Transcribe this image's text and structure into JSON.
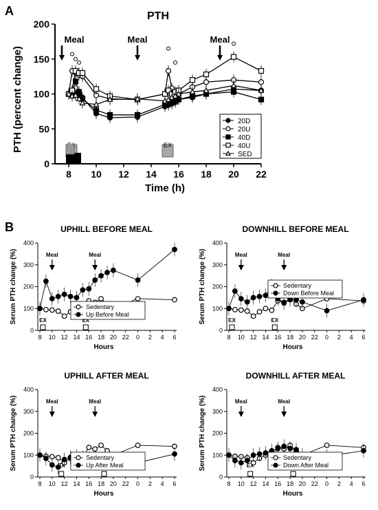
{
  "figure": {
    "panel_a_label": "A",
    "panel_b_label": "B"
  },
  "chart_data": [
    {
      "id": "A",
      "type": "line",
      "title": "PTH",
      "xlabel": "Time (h)",
      "ylabel": "PTH (percent change)",
      "xlim": [
        7,
        22
      ],
      "ylim": [
        0,
        200
      ],
      "xticks": [
        "8",
        "10",
        "12",
        "14",
        "16",
        "18",
        "20",
        "22"
      ],
      "yticks": [
        "0",
        "50",
        "100",
        "150",
        "200"
      ],
      "meals": [
        {
          "label": "Meal",
          "x": 7.5
        },
        {
          "label": "Meal",
          "x": 13
        },
        {
          "label": "Meal",
          "x": 19
        }
      ],
      "ex_markers": [
        {
          "label": "EX",
          "x": 8.2
        },
        {
          "label": "EX",
          "x": 15.2
        }
      ],
      "series": [
        {
          "name": "20D",
          "marker": "circle-filled",
          "x": [
            8,
            8.25,
            8.5,
            8.75,
            9,
            10,
            11,
            13,
            15,
            15.25,
            15.5,
            15.75,
            16,
            17,
            18,
            20,
            22
          ],
          "y": [
            100,
            102,
            100,
            97,
            95,
            72,
            66,
            67,
            82,
            84,
            86,
            88,
            92,
            95,
            100,
            107,
            105
          ]
        },
        {
          "name": "20U",
          "marker": "circle-open",
          "x": [
            8,
            8.25,
            8.5,
            8.75,
            9,
            10,
            11,
            13,
            15,
            15.25,
            15.5,
            15.75,
            16,
            17,
            18,
            20,
            22
          ],
          "y": [
            100,
            133,
            130,
            127,
            125,
            98,
            93,
            92,
            100,
            133,
            108,
            102,
            100,
            110,
            117,
            120,
            117
          ]
        },
        {
          "name": "40D",
          "marker": "square-filled",
          "x": [
            8,
            8.25,
            8.5,
            8.75,
            9,
            10,
            11,
            13,
            15,
            15.25,
            15.5,
            15.75,
            16,
            17,
            18,
            20,
            22
          ],
          "y": [
            100,
            100,
            118,
            103,
            93,
            77,
            70,
            70,
            85,
            87,
            88,
            90,
            92,
            97,
            100,
            103,
            92
          ]
        },
        {
          "name": "40U",
          "marker": "square-open",
          "x": [
            8,
            8.25,
            8.5,
            8.75,
            9,
            10,
            11,
            13,
            15,
            15.25,
            15.5,
            15.75,
            16,
            17,
            18,
            20,
            22
          ],
          "y": [
            100,
            105,
            133,
            130,
            130,
            107,
            97,
            92,
            100,
            105,
            100,
            103,
            105,
            120,
            128,
            153,
            133
          ]
        },
        {
          "name": "SED",
          "marker": "triangle-open",
          "x": [
            8,
            8.25,
            8.5,
            8.75,
            9,
            10,
            11,
            13,
            15,
            15.25,
            15.5,
            15.75,
            16,
            17,
            18,
            20,
            22
          ],
          "y": [
            100,
            97,
            98,
            93,
            87,
            85,
            92,
            93,
            90,
            92,
            95,
            97,
            100,
            103,
            105,
            112,
            105
          ]
        }
      ]
    },
    {
      "id": "B1",
      "type": "line",
      "title": "UPHILL BEFORE MEAL",
      "xlabel": "Hours",
      "ylabel": "Serum PTH change (%)",
      "ylim": [
        0,
        400
      ],
      "yticks": [
        "0",
        "100",
        "200",
        "300",
        "400"
      ],
      "xticks": [
        "8",
        "10",
        "12",
        "14",
        "16",
        "18",
        "20",
        "22",
        "0",
        "2",
        "4",
        "6"
      ],
      "meals": [
        {
          "label": "Meal",
          "x": 10
        },
        {
          "label": "Meal",
          "x": 17
        }
      ],
      "ex_markers": [
        {
          "label": "EX",
          "x": 8.5
        },
        {
          "label": "EX",
          "x": 15.5
        }
      ],
      "legend": [
        "Sedentary",
        "Up Before Meal"
      ],
      "series": [
        {
          "name": "Sedentary",
          "marker": "circle-open",
          "x": [
            8,
            9,
            10,
            11,
            12,
            13,
            14,
            15,
            16,
            17,
            18,
            19,
            20,
            24,
            30
          ],
          "y": [
            100,
            95,
            93,
            88,
            65,
            85,
            100,
            92,
            135,
            128,
            145,
            120,
            100,
            145,
            140
          ]
        },
        {
          "name": "Up Before Meal",
          "marker": "circle-filled",
          "x": [
            8,
            9,
            10,
            11,
            12,
            13,
            14,
            15,
            16,
            17,
            18,
            19,
            20,
            24,
            30
          ],
          "y": [
            100,
            225,
            145,
            155,
            165,
            155,
            150,
            185,
            190,
            230,
            250,
            265,
            275,
            230,
            370
          ]
        }
      ]
    },
    {
      "id": "B2",
      "type": "line",
      "title": "DOWNHILL BEFORE MEAL",
      "xlabel": "Hours",
      "ylabel": "Serum PTH change (%)",
      "ylim": [
        0,
        400
      ],
      "yticks": [
        "0",
        "100",
        "200",
        "300",
        "400"
      ],
      "xticks": [
        "8",
        "10",
        "12",
        "14",
        "16",
        "18",
        "20",
        "22",
        "0",
        "2",
        "4",
        "6"
      ],
      "meals": [
        {
          "label": "Meal",
          "x": 10
        },
        {
          "label": "Meal",
          "x": 17
        }
      ],
      "ex_markers": [
        {
          "label": "EX",
          "x": 8.5
        },
        {
          "label": "EX",
          "x": 15.5
        }
      ],
      "legend": [
        "Sedentary",
        "Down Before Meal"
      ],
      "series": [
        {
          "name": "Sedentary",
          "marker": "circle-open",
          "x": [
            8,
            9,
            10,
            11,
            12,
            13,
            14,
            15,
            16,
            17,
            18,
            19,
            20,
            24,
            30
          ],
          "y": [
            100,
            95,
            93,
            88,
            65,
            85,
            100,
            92,
            135,
            128,
            145,
            120,
            100,
            145,
            135
          ]
        },
        {
          "name": "Down Before Meal",
          "marker": "circle-filled",
          "x": [
            8,
            9,
            10,
            11,
            12,
            13,
            14,
            15,
            16,
            17,
            18,
            19,
            20,
            24,
            30
          ],
          "y": [
            100,
            180,
            145,
            130,
            150,
            155,
            160,
            205,
            145,
            125,
            140,
            140,
            130,
            90,
            140
          ]
        }
      ]
    },
    {
      "id": "B3",
      "type": "line",
      "title": "UPHILL AFTER MEAL",
      "xlabel": "Hours",
      "ylabel": "Serum PTH change (%)",
      "ylim": [
        0,
        400
      ],
      "yticks": [
        "0",
        "100",
        "200",
        "300",
        "400"
      ],
      "xticks": [
        "8",
        "10",
        "12",
        "14",
        "16",
        "18",
        "20",
        "22",
        "0",
        "2",
        "4",
        "6"
      ],
      "meals": [
        {
          "label": "Meal",
          "x": 10
        },
        {
          "label": "Meal",
          "x": 17
        }
      ],
      "ex_markers": [
        {
          "label": "EX",
          "x": 11.5
        },
        {
          "label": "EX",
          "x": 18.5
        }
      ],
      "legend": [
        "Sedentary",
        "Up After Meal"
      ],
      "series": [
        {
          "name": "Sedentary",
          "marker": "circle-open",
          "x": [
            8,
            9,
            10,
            11,
            12,
            13,
            14,
            15,
            16,
            17,
            18,
            19,
            20,
            24,
            30
          ],
          "y": [
            100,
            95,
            93,
            88,
            65,
            85,
            100,
            92,
            135,
            128,
            145,
            120,
            100,
            145,
            140
          ]
        },
        {
          "name": "Up After Meal",
          "marker": "circle-filled",
          "x": [
            8,
            9,
            10,
            11,
            12,
            13,
            14,
            15,
            16,
            17,
            18,
            19,
            20,
            24,
            30
          ],
          "y": [
            100,
            85,
            55,
            45,
            80,
            90,
            95,
            90,
            85,
            90,
            70,
            75,
            80,
            65,
            105
          ]
        }
      ]
    },
    {
      "id": "B4",
      "type": "line",
      "title": "DOWNHILL AFTER MEAL",
      "xlabel": "Hours",
      "ylabel": "Serum PTH change (%)",
      "ylim": [
        0,
        400
      ],
      "yticks": [
        "0",
        "100",
        "200",
        "300",
        "400"
      ],
      "xticks": [
        "8",
        "10",
        "12",
        "14",
        "16",
        "18",
        "20",
        "22",
        "0",
        "2",
        "4",
        "6"
      ],
      "meals": [
        {
          "label": "Meal",
          "x": 10
        },
        {
          "label": "Meal",
          "x": 17
        }
      ],
      "ex_markers": [
        {
          "label": "EX",
          "x": 11.5
        },
        {
          "label": "EX",
          "x": 18.5
        }
      ],
      "legend": [
        "Sedentary",
        "Down After Meal"
      ],
      "series": [
        {
          "name": "Sedentary",
          "marker": "circle-open",
          "x": [
            8,
            9,
            10,
            11,
            12,
            13,
            14,
            15,
            16,
            17,
            18,
            19,
            20,
            24,
            30
          ],
          "y": [
            100,
            95,
            93,
            88,
            65,
            85,
            100,
            92,
            135,
            128,
            145,
            120,
            100,
            145,
            135
          ]
        },
        {
          "name": "Down After Meal",
          "marker": "circle-filled",
          "x": [
            8,
            9,
            10,
            11,
            12,
            13,
            14,
            15,
            16,
            17,
            18,
            19,
            20,
            24,
            30
          ],
          "y": [
            100,
            75,
            65,
            75,
            100,
            105,
            110,
            120,
            130,
            140,
            130,
            125,
            100,
            95,
            120
          ]
        }
      ]
    }
  ]
}
